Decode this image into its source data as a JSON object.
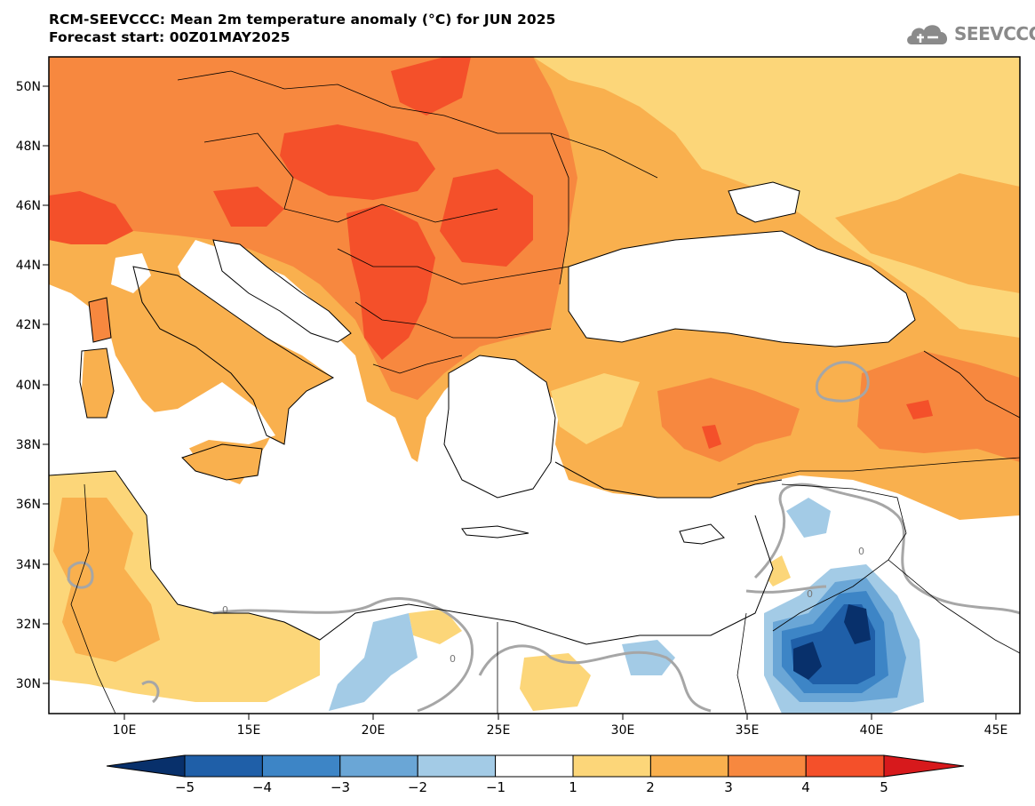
{
  "title": {
    "line1": "RCM-SEEVCCC: Mean 2m temperature anomaly (°C) for JUN 2025",
    "line2": "Forecast start: 00Z01MAY2025"
  },
  "logo": {
    "text": "SEEVCCC",
    "icon": "cloud-icon"
  },
  "map": {
    "lat_labels": [
      "50N",
      "48N",
      "46N",
      "44N",
      "42N",
      "40N",
      "38N",
      "36N",
      "34N",
      "32N",
      "30N"
    ],
    "lon_labels": [
      "10E",
      "15E",
      "20E",
      "25E",
      "30E",
      "35E",
      "40E",
      "45E"
    ],
    "contour_labels": [
      "0",
      "0",
      "0",
      "0"
    ]
  },
  "colorbar": {
    "labels": [
      "−5",
      "−4",
      "−3",
      "−2",
      "−1",
      "1",
      "2",
      "3",
      "4",
      "5"
    ],
    "colors": [
      "#08306b",
      "#1f5fa8",
      "#3d85c6",
      "#6aa6d6",
      "#a3cbe6",
      "#ffffff",
      "#fcd679",
      "#f9b04e",
      "#f7883f",
      "#f4502a",
      "#d7191c"
    ]
  },
  "anomaly_colors": {
    "ocean": "#ffffff",
    "c1_2": "#fcd679",
    "c2_3": "#f9b04e",
    "c3_4": "#f7883f",
    "c4_5": "#f4502a",
    "cm2_1": "#a3cbe6",
    "cm3_2": "#6aa6d6",
    "cm4_3": "#3d85c6",
    "cm5_4": "#1f5fa8",
    "clt5": "#08306b"
  }
}
